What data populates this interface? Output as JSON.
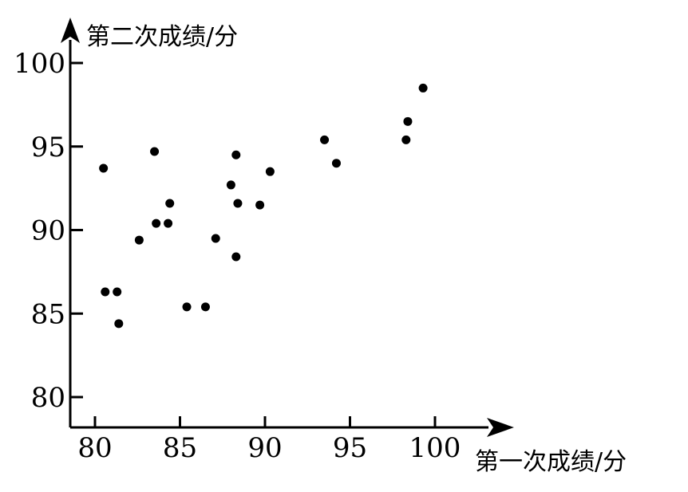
{
  "chart_data": {
    "type": "scatter",
    "xlabel": "第一次成绩/分",
    "ylabel": "第二次成绩/分",
    "xlim": [
      80,
      100
    ],
    "ylim": [
      80,
      100
    ],
    "xticks": [
      "80",
      "85",
      "90",
      "95",
      "100"
    ],
    "yticks": [
      "80",
      "85",
      "90",
      "95",
      "100"
    ],
    "grid": false,
    "points": [
      {
        "x": 80.5,
        "y": 93.7
      },
      {
        "x": 80.6,
        "y": 86.3
      },
      {
        "x": 81.3,
        "y": 86.3
      },
      {
        "x": 81.4,
        "y": 84.4
      },
      {
        "x": 82.6,
        "y": 89.4
      },
      {
        "x": 83.5,
        "y": 94.7
      },
      {
        "x": 83.6,
        "y": 90.4
      },
      {
        "x": 84.3,
        "y": 90.4
      },
      {
        "x": 84.4,
        "y": 91.6
      },
      {
        "x": 85.4,
        "y": 85.4
      },
      {
        "x": 86.5,
        "y": 85.4
      },
      {
        "x": 87.1,
        "y": 89.5
      },
      {
        "x": 88.0,
        "y": 92.7
      },
      {
        "x": 88.3,
        "y": 94.5
      },
      {
        "x": 88.3,
        "y": 88.4
      },
      {
        "x": 88.4,
        "y": 91.6
      },
      {
        "x": 89.7,
        "y": 91.5
      },
      {
        "x": 90.3,
        "y": 93.5
      },
      {
        "x": 93.5,
        "y": 95.4
      },
      {
        "x": 94.2,
        "y": 94.0
      },
      {
        "x": 98.3,
        "y": 95.4
      },
      {
        "x": 98.4,
        "y": 96.5
      },
      {
        "x": 99.3,
        "y": 98.5
      }
    ]
  }
}
